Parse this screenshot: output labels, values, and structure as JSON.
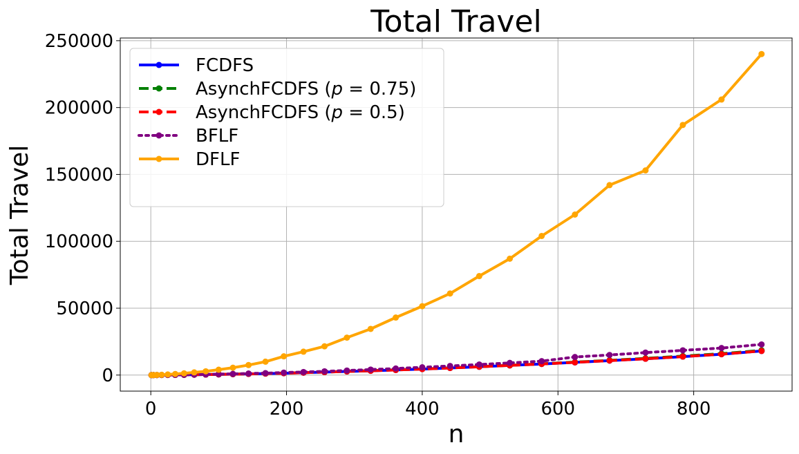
{
  "chart_data": {
    "type": "line",
    "title": "Total Travel",
    "xlabel": "n",
    "ylabel": "Total Travel",
    "xlim": [
      -45,
      945
    ],
    "ylim": [
      -12000,
      252000
    ],
    "xticks": [
      0,
      200,
      400,
      600,
      800
    ],
    "yticks": [
      0,
      50000,
      100000,
      150000,
      200000,
      250000
    ],
    "xtick_labels": [
      "0",
      "200",
      "400",
      "600",
      "800"
    ],
    "ytick_labels": [
      "0",
      "50000",
      "100000",
      "150000",
      "200000",
      "250000"
    ],
    "grid": true,
    "legend_position": "top-left",
    "x": [
      1,
      4,
      9,
      16,
      25,
      36,
      49,
      64,
      81,
      100,
      121,
      144,
      169,
      196,
      225,
      256,
      289,
      324,
      361,
      400,
      441,
      484,
      529,
      576,
      625,
      676,
      729,
      784,
      841,
      900
    ],
    "series": [
      {
        "name": "FCDFS",
        "color": "#0000ff",
        "dash": "solid",
        "values": [
          0,
          5,
          20,
          45,
          80,
          130,
          200,
          280,
          380,
          520,
          680,
          860,
          1100,
          1400,
          1800,
          2200,
          2700,
          3200,
          3800,
          4500,
          5300,
          6200,
          7200,
          8300,
          9500,
          10800,
          12200,
          13800,
          15600,
          18000
        ]
      },
      {
        "name": "AsynchFCDFS (p = 0.75)",
        "legend_prefix": "AsynchFCDFS (",
        "legend_math": "p",
        "legend_suffix": " = 0.75)",
        "color": "#008000",
        "dash": "dashed",
        "values": [
          0,
          5,
          20,
          45,
          80,
          130,
          200,
          290,
          390,
          540,
          700,
          890,
          1130,
          1450,
          1850,
          2250,
          2750,
          3300,
          3900,
          4600,
          5400,
          6300,
          7300,
          8400,
          9700,
          11000,
          12500,
          14200,
          16000,
          18500
        ]
      },
      {
        "name": "AsynchFCDFS (p = 0.5)",
        "legend_prefix": "AsynchFCDFS (",
        "legend_math": "p",
        "legend_suffix": " = 0.5)",
        "color": "#ff0000",
        "dash": "dashed",
        "values": [
          0,
          5,
          20,
          45,
          80,
          130,
          200,
          280,
          380,
          520,
          680,
          860,
          1100,
          1400,
          1800,
          2200,
          2700,
          3200,
          3800,
          4500,
          5300,
          6200,
          7200,
          8300,
          9500,
          10800,
          12200,
          13800,
          15600,
          18000
        ]
      },
      {
        "name": "BFLF",
        "color": "#800080",
        "dash": "dotted",
        "values": [
          0,
          10,
          30,
          60,
          110,
          180,
          270,
          380,
          520,
          700,
          900,
          1150,
          1450,
          1850,
          2300,
          2800,
          3400,
          4100,
          4900,
          5800,
          6800,
          7900,
          9100,
          10400,
          13500,
          15000,
          16800,
          18500,
          20200,
          22900
        ]
      },
      {
        "name": "DFLF",
        "color": "#ffa500",
        "dash": "solid",
        "values": [
          0,
          20,
          80,
          200,
          450,
          800,
          1300,
          2000,
          2800,
          4000,
          5500,
          7500,
          10000,
          14000,
          17500,
          21500,
          28000,
          34500,
          43000,
          51500,
          61000,
          74000,
          87000,
          104000,
          120000,
          142000,
          153000,
          187000,
          206000,
          240000
        ]
      }
    ]
  }
}
